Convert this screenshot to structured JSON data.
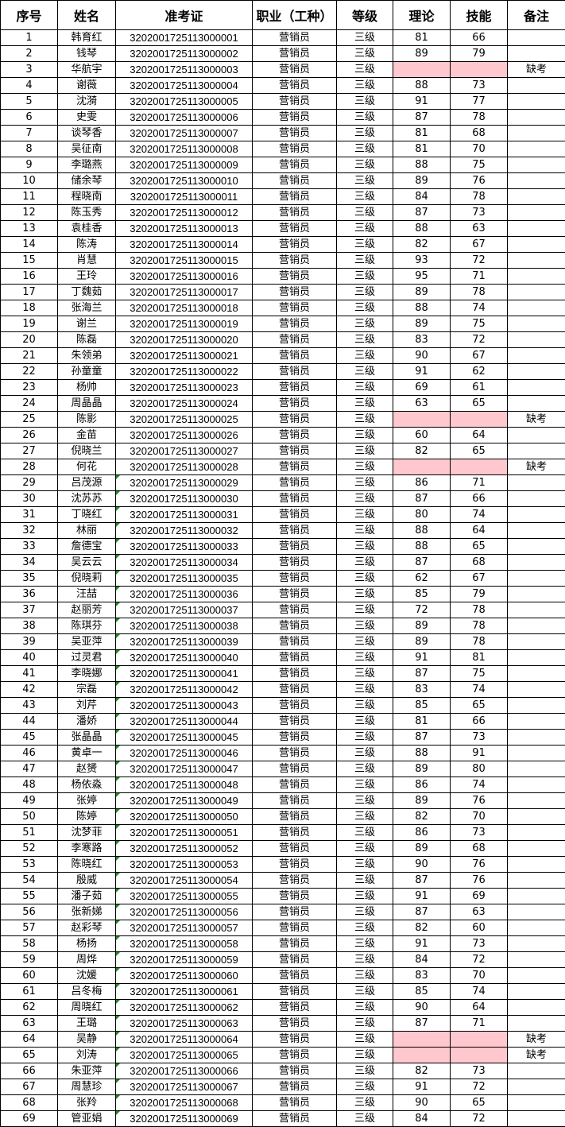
{
  "headers": [
    "序号",
    "姓名",
    "准考证",
    "职业（工种）",
    "等级",
    "理论",
    "技能",
    "备注"
  ],
  "colors": {
    "absent_fill": "#ffc7ce",
    "comment_marker": "#1a8a1a"
  },
  "rows": [
    [
      "1",
      "韩育红",
      "3202001725113000001",
      "营销员",
      "三级",
      "81",
      "66",
      ""
    ],
    [
      "2",
      "钱琴",
      "3202001725113000002",
      "营销员",
      "三级",
      "89",
      "79",
      ""
    ],
    [
      "3",
      "华航宇",
      "3202001725113000003",
      "营销员",
      "三级",
      "",
      "",
      "缺考"
    ],
    [
      "4",
      "谢薇",
      "3202001725113000004",
      "营销员",
      "三级",
      "88",
      "73",
      ""
    ],
    [
      "5",
      "沈漪",
      "3202001725113000005",
      "营销员",
      "三级",
      "91",
      "77",
      ""
    ],
    [
      "6",
      "史雯",
      "3202001725113000006",
      "营销员",
      "三级",
      "87",
      "78",
      ""
    ],
    [
      "7",
      "谈琴香",
      "3202001725113000007",
      "营销员",
      "三级",
      "81",
      "68",
      ""
    ],
    [
      "8",
      "吴征南",
      "3202001725113000008",
      "营销员",
      "三级",
      "81",
      "70",
      ""
    ],
    [
      "9",
      "李璐燕",
      "3202001725113000009",
      "营销员",
      "三级",
      "88",
      "75",
      ""
    ],
    [
      "10",
      "储余琴",
      "3202001725113000010",
      "营销员",
      "三级",
      "89",
      "76",
      ""
    ],
    [
      "11",
      "程晓南",
      "3202001725113000011",
      "营销员",
      "三级",
      "84",
      "78",
      ""
    ],
    [
      "12",
      "陈玉秀",
      "3202001725113000012",
      "营销员",
      "三级",
      "87",
      "73",
      ""
    ],
    [
      "13",
      "袁桂香",
      "3202001725113000013",
      "营销员",
      "三级",
      "88",
      "63",
      ""
    ],
    [
      "14",
      "陈涛",
      "3202001725113000014",
      "营销员",
      "三级",
      "82",
      "67",
      ""
    ],
    [
      "15",
      "肖慧",
      "3202001725113000015",
      "营销员",
      "三级",
      "93",
      "72",
      ""
    ],
    [
      "16",
      "王玲",
      "3202001725113000016",
      "营销员",
      "三级",
      "95",
      "71",
      ""
    ],
    [
      "17",
      "丁魏茹",
      "3202001725113000017",
      "营销员",
      "三级",
      "89",
      "78",
      ""
    ],
    [
      "18",
      "张海兰",
      "3202001725113000018",
      "营销员",
      "三级",
      "88",
      "74",
      ""
    ],
    [
      "19",
      "谢兰",
      "3202001725113000019",
      "营销员",
      "三级",
      "89",
      "75",
      ""
    ],
    [
      "20",
      "陈磊",
      "3202001725113000020",
      "营销员",
      "三级",
      "83",
      "72",
      ""
    ],
    [
      "21",
      "朱领弟",
      "3202001725113000021",
      "营销员",
      "三级",
      "90",
      "67",
      ""
    ],
    [
      "22",
      "孙童童",
      "3202001725113000022",
      "营销员",
      "三级",
      "91",
      "62",
      ""
    ],
    [
      "23",
      "杨帅",
      "3202001725113000023",
      "营销员",
      "三级",
      "69",
      "61",
      ""
    ],
    [
      "24",
      "周晶晶",
      "3202001725113000024",
      "营销员",
      "三级",
      "63",
      "65",
      ""
    ],
    [
      "25",
      "陈影",
      "3202001725113000025",
      "营销员",
      "三级",
      "",
      "",
      "缺考"
    ],
    [
      "26",
      "金苗",
      "3202001725113000026",
      "营销员",
      "三级",
      "60",
      "64",
      ""
    ],
    [
      "27",
      "倪晓兰",
      "3202001725113000027",
      "营销员",
      "三级",
      "82",
      "65",
      ""
    ],
    [
      "28",
      "何花",
      "3202001725113000028",
      "营销员",
      "三级",
      "",
      "",
      "缺考"
    ],
    [
      "29",
      "吕茂源",
      "3202001725113000029",
      "营销员",
      "三级",
      "86",
      "71",
      ""
    ],
    [
      "30",
      "沈苏苏",
      "3202001725113000030",
      "营销员",
      "三级",
      "87",
      "66",
      ""
    ],
    [
      "31",
      "丁晓红",
      "3202001725113000031",
      "营销员",
      "三级",
      "80",
      "74",
      ""
    ],
    [
      "32",
      "林丽",
      "3202001725113000032",
      "营销员",
      "三级",
      "88",
      "64",
      ""
    ],
    [
      "33",
      "詹德宝",
      "3202001725113000033",
      "营销员",
      "三级",
      "88",
      "65",
      ""
    ],
    [
      "34",
      "吴云云",
      "3202001725113000034",
      "营销员",
      "三级",
      "87",
      "68",
      ""
    ],
    [
      "35",
      "倪晓莉",
      "3202001725113000035",
      "营销员",
      "三级",
      "62",
      "67",
      ""
    ],
    [
      "36",
      "汪喆",
      "3202001725113000036",
      "营销员",
      "三级",
      "85",
      "79",
      ""
    ],
    [
      "37",
      "赵丽芳",
      "3202001725113000037",
      "营销员",
      "三级",
      "72",
      "78",
      ""
    ],
    [
      "38",
      "陈琪芬",
      "3202001725113000038",
      "营销员",
      "三级",
      "89",
      "78",
      ""
    ],
    [
      "39",
      "吴亚萍",
      "3202001725113000039",
      "营销员",
      "三级",
      "89",
      "78",
      ""
    ],
    [
      "40",
      "过灵君",
      "3202001725113000040",
      "营销员",
      "三级",
      "91",
      "81",
      ""
    ],
    [
      "41",
      "李晓娜",
      "3202001725113000041",
      "营销员",
      "三级",
      "87",
      "75",
      ""
    ],
    [
      "42",
      "宗磊",
      "3202001725113000042",
      "营销员",
      "三级",
      "83",
      "74",
      ""
    ],
    [
      "43",
      "刘芹",
      "3202001725113000043",
      "营销员",
      "三级",
      "85",
      "65",
      ""
    ],
    [
      "44",
      "潘娇",
      "3202001725113000044",
      "营销员",
      "三级",
      "81",
      "66",
      ""
    ],
    [
      "45",
      "张晶晶",
      "3202001725113000045",
      "营销员",
      "三级",
      "87",
      "73",
      ""
    ],
    [
      "46",
      "黄卓一",
      "3202001725113000046",
      "营销员",
      "三级",
      "88",
      "91",
      ""
    ],
    [
      "47",
      "赵赟",
      "3202001725113000047",
      "营销员",
      "三级",
      "89",
      "80",
      ""
    ],
    [
      "48",
      "杨依淼",
      "3202001725113000048",
      "营销员",
      "三级",
      "86",
      "74",
      ""
    ],
    [
      "49",
      "张婷",
      "3202001725113000049",
      "营销员",
      "三级",
      "89",
      "76",
      ""
    ],
    [
      "50",
      "陈婷",
      "3202001725113000050",
      "营销员",
      "三级",
      "82",
      "70",
      ""
    ],
    [
      "51",
      "沈梦菲",
      "3202001725113000051",
      "营销员",
      "三级",
      "86",
      "73",
      ""
    ],
    [
      "52",
      "李寒路",
      "3202001725113000052",
      "营销员",
      "三级",
      "89",
      "68",
      ""
    ],
    [
      "53",
      "陈晓红",
      "3202001725113000053",
      "营销员",
      "三级",
      "90",
      "76",
      ""
    ],
    [
      "54",
      "殷威",
      "3202001725113000054",
      "营销员",
      "三级",
      "87",
      "76",
      ""
    ],
    [
      "55",
      "潘子茹",
      "3202001725113000055",
      "营销员",
      "三级",
      "91",
      "69",
      ""
    ],
    [
      "56",
      "张新娣",
      "3202001725113000056",
      "营销员",
      "三级",
      "87",
      "63",
      ""
    ],
    [
      "57",
      "赵彩琴",
      "3202001725113000057",
      "营销员",
      "三级",
      "82",
      "60",
      ""
    ],
    [
      "58",
      "杨扬",
      "3202001725113000058",
      "营销员",
      "三级",
      "91",
      "73",
      ""
    ],
    [
      "59",
      "周烨",
      "3202001725113000059",
      "营销员",
      "三级",
      "84",
      "72",
      ""
    ],
    [
      "60",
      "沈媛",
      "3202001725113000060",
      "营销员",
      "三级",
      "83",
      "70",
      ""
    ],
    [
      "61",
      "吕冬梅",
      "3202001725113000061",
      "营销员",
      "三级",
      "85",
      "74",
      ""
    ],
    [
      "62",
      "周晓红",
      "3202001725113000062",
      "营销员",
      "三级",
      "90",
      "64",
      ""
    ],
    [
      "63",
      "王璐",
      "3202001725113000063",
      "营销员",
      "三级",
      "87",
      "71",
      ""
    ],
    [
      "64",
      "吴静",
      "3202001725113000064",
      "营销员",
      "三级",
      "",
      "",
      "缺考"
    ],
    [
      "65",
      "刘涛",
      "3202001725113000065",
      "营销员",
      "三级",
      "",
      "",
      "缺考"
    ],
    [
      "66",
      "朱亚萍",
      "3202001725113000066",
      "营销员",
      "三级",
      "82",
      "73",
      ""
    ],
    [
      "67",
      "周慧珍",
      "3202001725113000067",
      "营销员",
      "三级",
      "91",
      "72",
      ""
    ],
    [
      "68",
      "张羚",
      "3202001725113000068",
      "营销员",
      "三级",
      "90",
      "65",
      ""
    ],
    [
      "69",
      "管亚娟",
      "3202001725113000069",
      "营销员",
      "三级",
      "84",
      "72",
      ""
    ]
  ]
}
